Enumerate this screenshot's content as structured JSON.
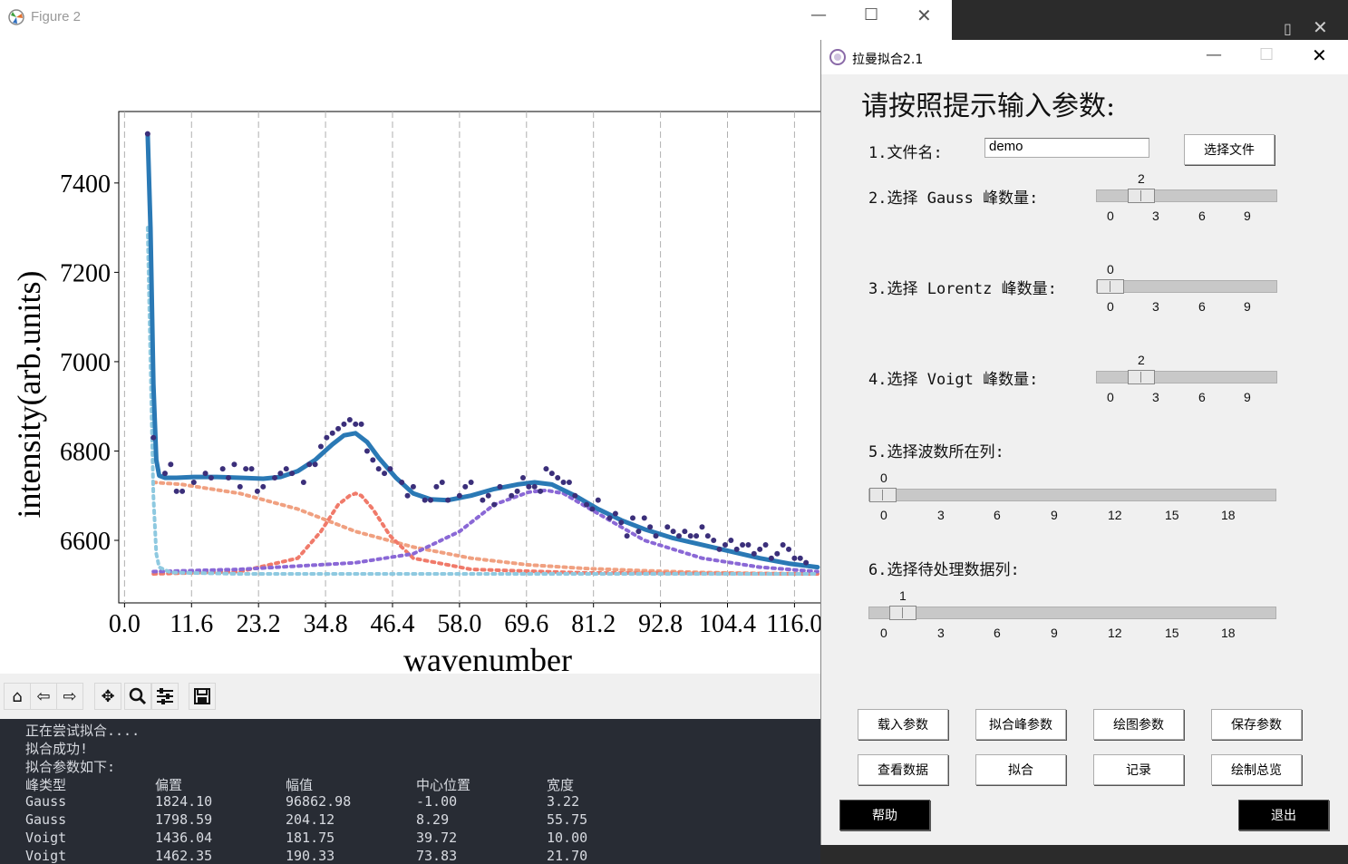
{
  "figure_window": {
    "title": "Figure 2"
  },
  "chart_data": {
    "type": "scatter",
    "xlabel": "wavenumber",
    "ylabel": "intensity(arb.units)",
    "xlim": [
      -1.0,
      123.0
    ],
    "ylim": [
      6460,
      7560
    ],
    "x_ticks": [
      "0.0",
      "11.6",
      "23.2",
      "34.8",
      "46.4",
      "58.0",
      "69.6",
      "81.2",
      "92.8",
      "104.4",
      "116.0"
    ],
    "x_tick_values": [
      0.0,
      11.6,
      23.2,
      34.8,
      46.4,
      58.0,
      69.6,
      81.2,
      92.8,
      104.4,
      116.0
    ],
    "y_ticks": [
      "6600",
      "6800",
      "7000",
      "7200",
      "7400"
    ],
    "y_tick_values": [
      6600,
      6800,
      7000,
      7200,
      7400
    ],
    "grid": "vertical dashed",
    "series": [
      {
        "kind": "points",
        "color": "#3b2f7a",
        "x": [
          4,
          5,
          7,
          8,
          9,
          10,
          12,
          14,
          15,
          17,
          18,
          19,
          20,
          21,
          22,
          23,
          24,
          26,
          27,
          28,
          29,
          31,
          32,
          33,
          34,
          35,
          36,
          37,
          38,
          39,
          40,
          41,
          42,
          43,
          44,
          45,
          46,
          48,
          49,
          50,
          52,
          53,
          54,
          55,
          56,
          58,
          59,
          60,
          62,
          63,
          64,
          65,
          67,
          68,
          69,
          70,
          71,
          72,
          73,
          74,
          75,
          76,
          77,
          78,
          80,
          81,
          82,
          84,
          85,
          86,
          87,
          88,
          89,
          90,
          91,
          92,
          94,
          95,
          96,
          97,
          98,
          99,
          100,
          101,
          102,
          103,
          104,
          105,
          106,
          107,
          108,
          109,
          110,
          111,
          112,
          113,
          114,
          115,
          116,
          117,
          118
        ],
        "y": [
          7510,
          6830,
          6750,
          6770,
          6710,
          6710,
          6730,
          6750,
          6740,
          6760,
          6740,
          6770,
          6720,
          6760,
          6760,
          6710,
          6720,
          6740,
          6750,
          6760,
          6750,
          6730,
          6770,
          6770,
          6810,
          6830,
          6840,
          6850,
          6860,
          6870,
          6860,
          6860,
          6800,
          6780,
          6760,
          6750,
          6760,
          6730,
          6700,
          6720,
          6690,
          6690,
          6720,
          6730,
          6690,
          6700,
          6720,
          6730,
          6690,
          6700,
          6680,
          6720,
          6700,
          6710,
          6740,
          6720,
          6720,
          6710,
          6760,
          6750,
          6740,
          6730,
          6730,
          6700,
          6680,
          6670,
          6690,
          6650,
          6660,
          6640,
          6610,
          6650,
          6620,
          6650,
          6630,
          6610,
          6630,
          6620,
          6610,
          6620,
          6610,
          6610,
          6630,
          6610,
          6600,
          6580,
          6590,
          6600,
          6580,
          6590,
          6590,
          6570,
          6580,
          6590,
          6560,
          6570,
          6590,
          6580,
          6560,
          6560,
          6550
        ]
      },
      {
        "kind": "fit",
        "color": "#2a79b5",
        "x": [
          4,
          4.5,
          5,
          5.5,
          6,
          7,
          9,
          12,
          16,
          20,
          24,
          27,
          30,
          33,
          36,
          38,
          40,
          42,
          44,
          47,
          50,
          53,
          56,
          60,
          64,
          68,
          71,
          74,
          78,
          82,
          86,
          90,
          95,
          100,
          105,
          110,
          115,
          120
        ],
        "y": [
          7510,
          7300,
          6950,
          6780,
          6745,
          6740,
          6740,
          6742,
          6742,
          6740,
          6738,
          6742,
          6755,
          6780,
          6815,
          6835,
          6840,
          6820,
          6785,
          6740,
          6705,
          6692,
          6690,
          6700,
          6715,
          6725,
          6730,
          6725,
          6700,
          6670,
          6645,
          6625,
          6605,
          6590,
          6575,
          6560,
          6548,
          6540
        ]
      },
      {
        "kind": "component",
        "color": "#f0a080",
        "x": [
          5,
          10,
          20,
          30,
          40,
          50,
          60,
          70,
          80,
          90,
          100,
          110,
          120
        ],
        "y": [
          6730,
          6725,
          6705,
          6670,
          6620,
          6585,
          6560,
          6545,
          6537,
          6532,
          6528,
          6526,
          6525
        ]
      },
      {
        "kind": "component",
        "color": "#f07a6a",
        "x": [
          5,
          20,
          30,
          34,
          37,
          39,
          40,
          41,
          43,
          46,
          50,
          60,
          80,
          120
        ],
        "y": [
          6525,
          6530,
          6560,
          6620,
          6680,
          6700,
          6705,
          6700,
          6670,
          6610,
          6560,
          6535,
          6527,
          6525
        ]
      },
      {
        "kind": "component",
        "color": "#8a68d6",
        "x": [
          5,
          20,
          40,
          50,
          58,
          64,
          70,
          73,
          76,
          82,
          90,
          100,
          110,
          120
        ],
        "y": [
          6530,
          6535,
          6550,
          6570,
          6620,
          6680,
          6708,
          6712,
          6705,
          6660,
          6600,
          6560,
          6540,
          6530
        ]
      },
      {
        "kind": "component",
        "color": "#8ec9e0",
        "x": [
          4,
          4.5,
          5,
          5.5,
          6,
          8,
          20,
          60,
          120
        ],
        "y": [
          7300,
          7000,
          6700,
          6570,
          6540,
          6528,
          6525,
          6525,
          6525
        ]
      }
    ]
  },
  "toolbar": {
    "icons": [
      "home-icon",
      "back-icon",
      "forward-icon",
      "pan-icon",
      "zoom-icon",
      "configure-icon",
      "save-icon"
    ]
  },
  "console": {
    "lines": [
      "正在尝试拟合....",
      "拟合成功!",
      "拟合参数如下:"
    ],
    "headers": [
      "峰类型",
      "偏置",
      "幅值",
      "中心位置",
      "宽度"
    ],
    "rows": [
      [
        "Gauss",
        "1824.10",
        "96862.98",
        "-1.00",
        "3.22"
      ],
      [
        "Gauss",
        "1798.59",
        "204.12",
        "8.29",
        "55.75"
      ],
      [
        "Voigt",
        "1436.04",
        "181.75",
        "39.72",
        "10.00"
      ],
      [
        "Voigt",
        "1462.35",
        "190.33",
        "73.83",
        "21.70"
      ]
    ]
  },
  "dialog": {
    "title": "拉曼拟合2.1",
    "heading": "请按照提示输入参数:",
    "file_label": "1.文件名:",
    "file_value": "demo",
    "select_file": "选择文件",
    "gauss_label": "2.选择 Gauss 峰数量:",
    "gauss_value": "2",
    "lorentz_label": "3.选择 Lorentz 峰数量:",
    "lorentz_value": "0",
    "voigt_label": "4.选择 Voigt 峰数量:",
    "voigt_value": "2",
    "wave_col_label": "5.选择波数所在列:",
    "wave_col_value": "0",
    "data_col_label": "6.选择待处理数据列:",
    "data_col_value": "1",
    "small_ticks": [
      "0",
      "3",
      "6",
      "9"
    ],
    "col_ticks": [
      "0",
      "3",
      "6",
      "9",
      "12",
      "15",
      "18"
    ],
    "buttons": {
      "load": "载入参数",
      "fit_peak": "拟合峰参数",
      "plot_params": "绘图参数",
      "save_params": "保存参数",
      "view_data": "查看数据",
      "fit": "拟合",
      "record": "记录",
      "overview": "绘制总览",
      "help": "帮助",
      "exit": "退出"
    }
  }
}
